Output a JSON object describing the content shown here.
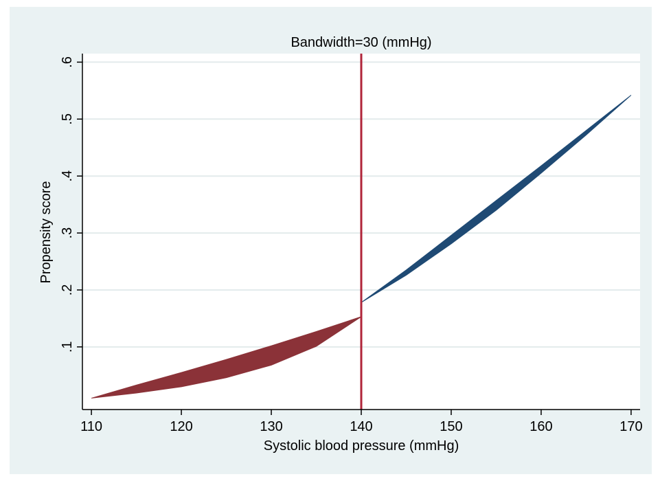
{
  "chart_data": {
    "type": "area",
    "title": "Bandwidth=30 (mmHg)",
    "xlabel": "Systolic blood pressure (mmHg)",
    "ylabel": "Propensity score",
    "xlim": [
      109,
      171
    ],
    "ylim": [
      -0.01,
      0.615
    ],
    "xticks": [
      110,
      120,
      130,
      140,
      150,
      160,
      170
    ],
    "yticks": [
      0.1,
      0.2,
      0.3,
      0.4,
      0.5,
      0.6
    ],
    "ytick_labels": [
      ".1",
      ".2",
      ".3",
      ".4",
      ".5",
      ".6"
    ],
    "grid": true,
    "cutoff": 140,
    "series": [
      {
        "color": "#8b3238",
        "x": [
          110,
          115,
          120,
          125,
          130,
          135,
          140
        ],
        "upper": [
          0.01,
          0.033,
          0.055,
          0.078,
          0.102,
          0.127,
          0.153
        ],
        "lower": [
          0.01,
          0.019,
          0.03,
          0.046,
          0.068,
          0.101,
          0.153
        ]
      },
      {
        "color": "#1f4a74",
        "x": [
          140,
          145,
          150,
          155,
          160,
          165,
          170
        ],
        "upper": [
          0.178,
          0.235,
          0.296,
          0.357,
          0.418,
          0.48,
          0.542
        ],
        "lower": [
          0.178,
          0.226,
          0.281,
          0.34,
          0.405,
          0.472,
          0.542
        ]
      }
    ],
    "colors": {
      "outer_background": "#eaf2f3",
      "plot_background": "#ffffff",
      "grid": "#e3ebec",
      "cutoff_line": "#b0253a"
    }
  }
}
